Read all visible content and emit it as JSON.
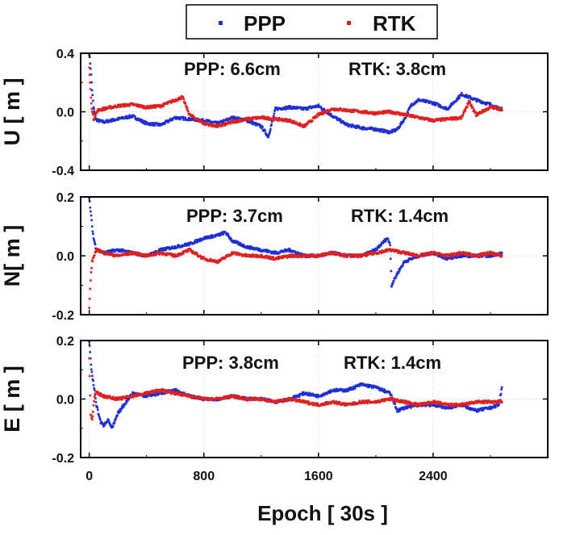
{
  "chart_data": {
    "type": "scatter",
    "legend": {
      "placement": "top-center",
      "entries": [
        {
          "name": "PPP",
          "color": "#1f2fd6"
        },
        {
          "name": "RTK",
          "color": "#e02020"
        }
      ]
    },
    "xlabel": "Epoch [ 30s ]",
    "xlim": [
      -60,
      3200
    ],
    "xticks": [
      0,
      800,
      1600,
      2400
    ],
    "xtick_labels": [
      "0",
      "800",
      "1600",
      "2400"
    ],
    "grid": true,
    "panels": [
      {
        "ylabel": "U [ m ]",
        "ylim": [
          -0.4,
          0.4
        ],
        "yticks": [
          -0.4,
          0.0,
          0.4
        ],
        "ytick_labels": [
          "-0.4",
          "0.0",
          "0.4"
        ],
        "annotations": [
          "PPP: 6.6cm",
          "RTK: 3.8cm"
        ],
        "series": [
          {
            "name": "PPP",
            "x": [
              0,
              10,
              20,
              30,
              45,
              60,
              100,
              200,
              300,
              400,
              500,
              600,
              700,
              800,
              900,
              1000,
              1100,
              1200,
              1250,
              1300,
              1400,
              1500,
              1600,
              1700,
              1800,
              1900,
              2000,
              2100,
              2150,
              2200,
              2250,
              2300,
              2400,
              2500,
              2600,
              2700,
              2800,
              2880
            ],
            "y": [
              0.4,
              0.3,
              0.15,
              0.03,
              -0.05,
              -0.06,
              -0.07,
              -0.05,
              -0.03,
              -0.08,
              -0.09,
              -0.04,
              -0.05,
              -0.06,
              -0.08,
              -0.04,
              -0.06,
              -0.1,
              -0.17,
              0.02,
              0.03,
              0.02,
              0.04,
              -0.03,
              -0.09,
              -0.11,
              -0.12,
              -0.14,
              -0.12,
              -0.05,
              0.05,
              0.08,
              0.06,
              0.02,
              0.12,
              0.08,
              0.05,
              0.01
            ]
          },
          {
            "name": "RTK",
            "x": [
              0,
              15,
              30,
              60,
              100,
              200,
              300,
              400,
              500,
              550,
              600,
              650,
              700,
              800,
              900,
              1000,
              1100,
              1200,
              1300,
              1400,
              1500,
              1600,
              1700,
              1800,
              1900,
              2000,
              2100,
              2200,
              2300,
              2400,
              2500,
              2600,
              2650,
              2700,
              2800,
              2880
            ],
            "y": [
              0.3,
              0.05,
              -0.05,
              0.01,
              0.02,
              0.04,
              0.05,
              0.03,
              0.04,
              0.06,
              0.08,
              0.1,
              -0.02,
              -0.08,
              -0.1,
              -0.07,
              -0.05,
              -0.04,
              -0.05,
              -0.06,
              -0.1,
              -0.02,
              0.02,
              0.01,
              0.0,
              -0.01,
              0.0,
              -0.02,
              -0.04,
              -0.06,
              -0.05,
              -0.04,
              0.07,
              -0.02,
              0.03,
              0.02
            ]
          }
        ]
      },
      {
        "ylabel": "N[ m ]",
        "ylim": [
          -0.2,
          0.2
        ],
        "yticks": [
          -0.2,
          0.0,
          0.2
        ],
        "ytick_labels": [
          "-0.2",
          "0.0",
          "0.2"
        ],
        "annotations": [
          "PPP: 3.7cm",
          "RTK: 1.4cm"
        ],
        "series": [
          {
            "name": "PPP",
            "x": [
              0,
              10,
              20,
              30,
              45,
              60,
              100,
              200,
              300,
              400,
              500,
              600,
              700,
              800,
              900,
              950,
              1000,
              1100,
              1200,
              1300,
              1400,
              1500,
              1600,
              1700,
              1800,
              1900,
              2000,
              2080,
              2100,
              2110,
              2150,
              2200,
              2300,
              2400,
              2500,
              2600,
              2700,
              2800,
              2880
            ],
            "y": [
              0.2,
              0.15,
              0.1,
              0.06,
              0.03,
              0.02,
              0.01,
              0.02,
              0.01,
              0.0,
              0.02,
              0.03,
              0.04,
              0.06,
              0.07,
              0.08,
              0.05,
              0.03,
              0.02,
              0.01,
              0.02,
              0.0,
              0.0,
              0.01,
              0.0,
              0.0,
              0.02,
              0.06,
              0.04,
              -0.1,
              -0.06,
              -0.02,
              0.0,
              0.01,
              -0.01,
              0.0,
              0.0,
              0.0,
              0.01
            ]
          },
          {
            "name": "RTK",
            "x": [
              0,
              10,
              20,
              40,
              60,
              100,
              200,
              300,
              400,
              500,
              600,
              700,
              800,
              900,
              1000,
              1100,
              1200,
              1300,
              1400,
              1500,
              1600,
              1700,
              1800,
              1900,
              2000,
              2100,
              2200,
              2300,
              2400,
              2500,
              2600,
              2700,
              2800,
              2880
            ],
            "y": [
              -0.18,
              -0.08,
              -0.02,
              0.01,
              0.02,
              0.01,
              0.0,
              0.01,
              0.0,
              0.01,
              0.0,
              0.02,
              -0.01,
              -0.02,
              0.01,
              0.0,
              0.0,
              -0.01,
              0.0,
              0.0,
              0.0,
              0.01,
              0.0,
              0.0,
              0.01,
              0.02,
              0.01,
              0.0,
              0.01,
              0.0,
              0.01,
              0.0,
              0.01,
              0.0
            ]
          }
        ]
      },
      {
        "ylabel": "E [ m ]",
        "ylim": [
          -0.2,
          0.2
        ],
        "yticks": [
          -0.2,
          0.0,
          0.2
        ],
        "ytick_labels": [
          "-0.2",
          "0.0",
          "0.2"
        ],
        "annotations": [
          "PPP: 3.8cm",
          "RTK: 1.4cm"
        ],
        "series": [
          {
            "name": "PPP",
            "x": [
              0,
              15,
              30,
              50,
              80,
              100,
              130,
              160,
              200,
              300,
              400,
              500,
              600,
              700,
              800,
              900,
              1000,
              1100,
              1200,
              1300,
              1400,
              1500,
              1600,
              1700,
              1800,
              1900,
              2000,
              2100,
              2150,
              2200,
              2300,
              2400,
              2500,
              2600,
              2700,
              2800,
              2860,
              2880
            ],
            "y": [
              0.2,
              0.1,
              0.05,
              -0.02,
              -0.08,
              -0.09,
              -0.07,
              -0.1,
              -0.05,
              0.02,
              0.01,
              0.02,
              0.03,
              0.01,
              0.0,
              0.0,
              0.01,
              0.0,
              0.0,
              -0.01,
              0.0,
              0.02,
              0.01,
              0.03,
              0.03,
              0.05,
              0.04,
              0.02,
              -0.04,
              -0.03,
              -0.02,
              -0.02,
              -0.03,
              -0.02,
              -0.04,
              -0.03,
              -0.02,
              0.04
            ]
          },
          {
            "name": "RTK",
            "x": [
              0,
              10,
              20,
              40,
              60,
              100,
              200,
              300,
              400,
              500,
              600,
              700,
              800,
              900,
              1000,
              1100,
              1200,
              1300,
              1400,
              1500,
              1600,
              1700,
              1800,
              1900,
              2000,
              2100,
              2200,
              2300,
              2400,
              2500,
              2600,
              2700,
              2800,
              2880
            ],
            "y": [
              0.14,
              -0.05,
              -0.07,
              0.02,
              0.02,
              0.01,
              0.0,
              0.01,
              0.02,
              0.03,
              0.02,
              0.01,
              0.0,
              0.0,
              0.01,
              0.0,
              0.0,
              -0.01,
              0.0,
              -0.01,
              -0.02,
              -0.01,
              -0.02,
              -0.01,
              -0.01,
              0.0,
              -0.01,
              -0.02,
              -0.01,
              -0.02,
              -0.02,
              -0.01,
              -0.01,
              -0.01
            ]
          }
        ]
      }
    ]
  }
}
